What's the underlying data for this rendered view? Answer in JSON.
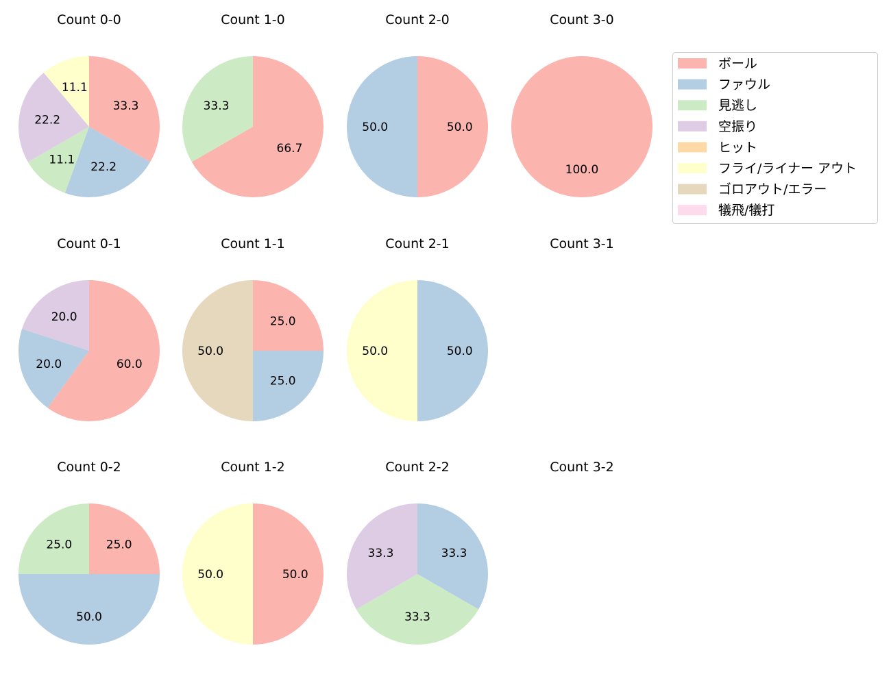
{
  "chart_data": {
    "type": "pie",
    "start_angle": 90,
    "direction": "clockwise",
    "categories": [
      "ボール",
      "ファウル",
      "見逃し",
      "空振り",
      "ヒット",
      "フライ/ライナー アウト",
      "ゴロアウト/エラー",
      "犠飛/犠打"
    ],
    "colors": [
      "#fbb4ae",
      "#b3cde3",
      "#ccebc5",
      "#decbe4",
      "#fed9a6",
      "#ffffcc",
      "#e5d8bd",
      "#fddaec"
    ],
    "legend": {
      "placement": "upper-right, outside"
    },
    "charts": [
      {
        "title": "Count 0-0",
        "values": [
          33.3,
          22.2,
          11.1,
          22.2,
          0,
          11.1,
          0,
          0
        ]
      },
      {
        "title": "Count 1-0",
        "values": [
          66.7,
          0,
          33.3,
          0,
          0,
          0,
          0,
          0
        ]
      },
      {
        "title": "Count 2-0",
        "values": [
          50.0,
          50.0,
          0,
          0,
          0,
          0,
          0,
          0
        ]
      },
      {
        "title": "Count 3-0",
        "values": [
          100.0,
          0,
          0,
          0,
          0,
          0,
          0,
          0
        ]
      },
      {
        "title": "Count 0-1",
        "values": [
          60.0,
          20.0,
          0,
          20.0,
          0,
          0,
          0,
          0
        ]
      },
      {
        "title": "Count 1-1",
        "values": [
          25.0,
          25.0,
          0,
          0,
          0,
          0,
          50.0,
          0
        ]
      },
      {
        "title": "Count 2-1",
        "values": [
          0,
          50.0,
          0,
          0,
          0,
          50.0,
          0,
          0
        ]
      },
      {
        "title": "Count 3-1",
        "values": []
      },
      {
        "title": "Count 0-2",
        "values": [
          25.0,
          50.0,
          25.0,
          0,
          0,
          0,
          0,
          0
        ]
      },
      {
        "title": "Count 1-2",
        "values": [
          50.0,
          0,
          0,
          0,
          0,
          50.0,
          0,
          0
        ]
      },
      {
        "title": "Count 2-2",
        "values": [
          0,
          33.3,
          33.3,
          33.3,
          0,
          0,
          0,
          0
        ]
      },
      {
        "title": "Count 3-2",
        "values": []
      }
    ]
  }
}
